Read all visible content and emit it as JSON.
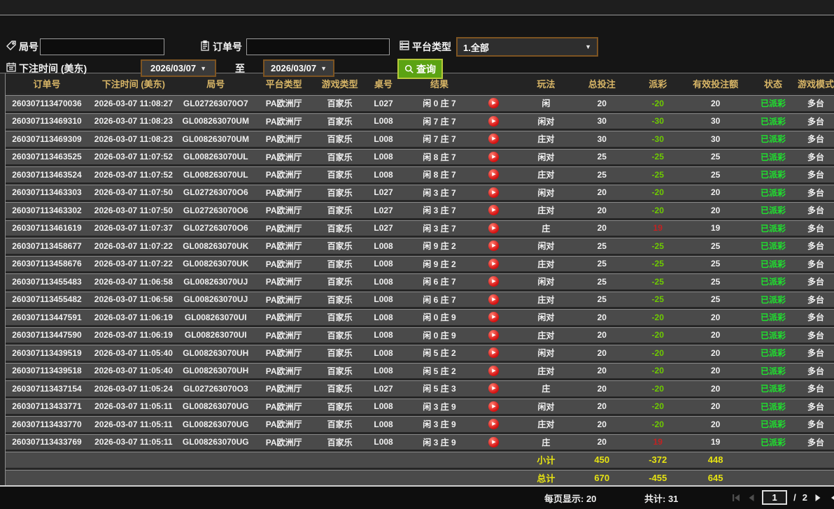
{
  "filters": {
    "game_no_label": "局号",
    "game_no_value": "",
    "order_no_label": "订单号",
    "order_no_value": "",
    "platform_label": "平台类型",
    "platform_value": "1.全部",
    "bet_time_label": "下注时间 (美东)",
    "date_from": "2026/03/07",
    "to_label": "至",
    "date_to": "2026/03/07",
    "search_label": "查询"
  },
  "table": {
    "columns": [
      {
        "key": "order_no",
        "label": "订单号"
      },
      {
        "key": "bet_time",
        "label": "下注时间 (美东)"
      },
      {
        "key": "game_no",
        "label": "局号"
      },
      {
        "key": "platform",
        "label": "平台类型"
      },
      {
        "key": "game_type",
        "label": "游戏类型"
      },
      {
        "key": "table_no",
        "label": "桌号"
      },
      {
        "key": "result",
        "label": "结果"
      },
      {
        "key": "bet_type",
        "label": "玩法"
      },
      {
        "key": "total_bet",
        "label": "总投注"
      },
      {
        "key": "payout",
        "label": "派彩"
      },
      {
        "key": "valid_bet",
        "label": "有效投注额"
      },
      {
        "key": "status",
        "label": "状态"
      },
      {
        "key": "game_mode",
        "label": "游戏模式"
      }
    ],
    "rows": [
      {
        "order_no": "260307113470036",
        "bet_time": "2026-03-07 11:08:27",
        "game_no": "GL027263070O7",
        "platform": "PA欧洲厅",
        "game_type": "百家乐",
        "table_no": "L027",
        "result": "闲 0 庄 7",
        "bet_type": "闲",
        "total_bet": "20",
        "payout": "-20",
        "valid_bet": "20",
        "status": "已派彩",
        "game_mode": "多台"
      },
      {
        "order_no": "260307113469310",
        "bet_time": "2026-03-07 11:08:23",
        "game_no": "GL008263070UM",
        "platform": "PA欧洲厅",
        "game_type": "百家乐",
        "table_no": "L008",
        "result": "闲 7 庄 7",
        "bet_type": "闲对",
        "total_bet": "30",
        "payout": "-30",
        "valid_bet": "30",
        "status": "已派彩",
        "game_mode": "多台"
      },
      {
        "order_no": "260307113469309",
        "bet_time": "2026-03-07 11:08:23",
        "game_no": "GL008263070UM",
        "platform": "PA欧洲厅",
        "game_type": "百家乐",
        "table_no": "L008",
        "result": "闲 7 庄 7",
        "bet_type": "庄对",
        "total_bet": "30",
        "payout": "-30",
        "valid_bet": "30",
        "status": "已派彩",
        "game_mode": "多台"
      },
      {
        "order_no": "260307113463525",
        "bet_time": "2026-03-07 11:07:52",
        "game_no": "GL008263070UL",
        "platform": "PA欧洲厅",
        "game_type": "百家乐",
        "table_no": "L008",
        "result": "闲 8 庄 7",
        "bet_type": "闲对",
        "total_bet": "25",
        "payout": "-25",
        "valid_bet": "25",
        "status": "已派彩",
        "game_mode": "多台"
      },
      {
        "order_no": "260307113463524",
        "bet_time": "2026-03-07 11:07:52",
        "game_no": "GL008263070UL",
        "platform": "PA欧洲厅",
        "game_type": "百家乐",
        "table_no": "L008",
        "result": "闲 8 庄 7",
        "bet_type": "庄对",
        "total_bet": "25",
        "payout": "-25",
        "valid_bet": "25",
        "status": "已派彩",
        "game_mode": "多台"
      },
      {
        "order_no": "260307113463303",
        "bet_time": "2026-03-07 11:07:50",
        "game_no": "GL027263070O6",
        "platform": "PA欧洲厅",
        "game_type": "百家乐",
        "table_no": "L027",
        "result": "闲 3 庄 7",
        "bet_type": "闲对",
        "total_bet": "20",
        "payout": "-20",
        "valid_bet": "20",
        "status": "已派彩",
        "game_mode": "多台"
      },
      {
        "order_no": "260307113463302",
        "bet_time": "2026-03-07 11:07:50",
        "game_no": "GL027263070O6",
        "platform": "PA欧洲厅",
        "game_type": "百家乐",
        "table_no": "L027",
        "result": "闲 3 庄 7",
        "bet_type": "庄对",
        "total_bet": "20",
        "payout": "-20",
        "valid_bet": "20",
        "status": "已派彩",
        "game_mode": "多台"
      },
      {
        "order_no": "260307113461619",
        "bet_time": "2026-03-07 11:07:37",
        "game_no": "GL027263070O6",
        "platform": "PA欧洲厅",
        "game_type": "百家乐",
        "table_no": "L027",
        "result": "闲 3 庄 7",
        "bet_type": "庄",
        "total_bet": "20",
        "payout": "19",
        "valid_bet": "19",
        "status": "已派彩",
        "game_mode": "多台"
      },
      {
        "order_no": "260307113458677",
        "bet_time": "2026-03-07 11:07:22",
        "game_no": "GL008263070UK",
        "platform": "PA欧洲厅",
        "game_type": "百家乐",
        "table_no": "L008",
        "result": "闲 9 庄 2",
        "bet_type": "闲对",
        "total_bet": "25",
        "payout": "-25",
        "valid_bet": "25",
        "status": "已派彩",
        "game_mode": "多台"
      },
      {
        "order_no": "260307113458676",
        "bet_time": "2026-03-07 11:07:22",
        "game_no": "GL008263070UK",
        "platform": "PA欧洲厅",
        "game_type": "百家乐",
        "table_no": "L008",
        "result": "闲 9 庄 2",
        "bet_type": "庄对",
        "total_bet": "25",
        "payout": "-25",
        "valid_bet": "25",
        "status": "已派彩",
        "game_mode": "多台"
      },
      {
        "order_no": "260307113455483",
        "bet_time": "2026-03-07 11:06:58",
        "game_no": "GL008263070UJ",
        "platform": "PA欧洲厅",
        "game_type": "百家乐",
        "table_no": "L008",
        "result": "闲 6 庄 7",
        "bet_type": "闲对",
        "total_bet": "25",
        "payout": "-25",
        "valid_bet": "25",
        "status": "已派彩",
        "game_mode": "多台"
      },
      {
        "order_no": "260307113455482",
        "bet_time": "2026-03-07 11:06:58",
        "game_no": "GL008263070UJ",
        "platform": "PA欧洲厅",
        "game_type": "百家乐",
        "table_no": "L008",
        "result": "闲 6 庄 7",
        "bet_type": "庄对",
        "total_bet": "25",
        "payout": "-25",
        "valid_bet": "25",
        "status": "已派彩",
        "game_mode": "多台"
      },
      {
        "order_no": "260307113447591",
        "bet_time": "2026-03-07 11:06:19",
        "game_no": "GL008263070UI",
        "platform": "PA欧洲厅",
        "game_type": "百家乐",
        "table_no": "L008",
        "result": "闲 0 庄 9",
        "bet_type": "闲对",
        "total_bet": "20",
        "payout": "-20",
        "valid_bet": "20",
        "status": "已派彩",
        "game_mode": "多台"
      },
      {
        "order_no": "260307113447590",
        "bet_time": "2026-03-07 11:06:19",
        "game_no": "GL008263070UI",
        "platform": "PA欧洲厅",
        "game_type": "百家乐",
        "table_no": "L008",
        "result": "闲 0 庄 9",
        "bet_type": "庄对",
        "total_bet": "20",
        "payout": "-20",
        "valid_bet": "20",
        "status": "已派彩",
        "game_mode": "多台"
      },
      {
        "order_no": "260307113439519",
        "bet_time": "2026-03-07 11:05:40",
        "game_no": "GL008263070UH",
        "platform": "PA欧洲厅",
        "game_type": "百家乐",
        "table_no": "L008",
        "result": "闲 5 庄 2",
        "bet_type": "闲对",
        "total_bet": "20",
        "payout": "-20",
        "valid_bet": "20",
        "status": "已派彩",
        "game_mode": "多台"
      },
      {
        "order_no": "260307113439518",
        "bet_time": "2026-03-07 11:05:40",
        "game_no": "GL008263070UH",
        "platform": "PA欧洲厅",
        "game_type": "百家乐",
        "table_no": "L008",
        "result": "闲 5 庄 2",
        "bet_type": "庄对",
        "total_bet": "20",
        "payout": "-20",
        "valid_bet": "20",
        "status": "已派彩",
        "game_mode": "多台"
      },
      {
        "order_no": "260307113437154",
        "bet_time": "2026-03-07 11:05:24",
        "game_no": "GL027263070O3",
        "platform": "PA欧洲厅",
        "game_type": "百家乐",
        "table_no": "L027",
        "result": "闲 5 庄 3",
        "bet_type": "庄",
        "total_bet": "20",
        "payout": "-20",
        "valid_bet": "20",
        "status": "已派彩",
        "game_mode": "多台"
      },
      {
        "order_no": "260307113433771",
        "bet_time": "2026-03-07 11:05:11",
        "game_no": "GL008263070UG",
        "platform": "PA欧洲厅",
        "game_type": "百家乐",
        "table_no": "L008",
        "result": "闲 3 庄 9",
        "bet_type": "闲对",
        "total_bet": "20",
        "payout": "-20",
        "valid_bet": "20",
        "status": "已派彩",
        "game_mode": "多台"
      },
      {
        "order_no": "260307113433770",
        "bet_time": "2026-03-07 11:05:11",
        "game_no": "GL008263070UG",
        "platform": "PA欧洲厅",
        "game_type": "百家乐",
        "table_no": "L008",
        "result": "闲 3 庄 9",
        "bet_type": "庄对",
        "total_bet": "20",
        "payout": "-20",
        "valid_bet": "20",
        "status": "已派彩",
        "game_mode": "多台"
      },
      {
        "order_no": "260307113433769",
        "bet_time": "2026-03-07 11:05:11",
        "game_no": "GL008263070UG",
        "platform": "PA欧洲厅",
        "game_type": "百家乐",
        "table_no": "L008",
        "result": "闲 3 庄 9",
        "bet_type": "庄",
        "total_bet": "20",
        "payout": "19",
        "valid_bet": "19",
        "status": "已派彩",
        "game_mode": "多台"
      }
    ],
    "subtotal": {
      "label": "小计",
      "total_bet": "450",
      "payout": "-372",
      "valid_bet": "448"
    },
    "grand_total": {
      "label": "总计",
      "total_bet": "670",
      "payout": "-455",
      "valid_bet": "645"
    }
  },
  "pager": {
    "per_page_text": "每页显示: 20",
    "total_count_text": "共计: 31",
    "page": "1",
    "page_sep": "/",
    "total_pages": "2"
  },
  "colors": {
    "search_button_green": "#5ba313",
    "dropdown_border_orange": "#7d5422",
    "header_gold": "#d7b566",
    "payout_negative_green": "#6ecb00",
    "payout_positive_red": "#c32222",
    "status_green": "#1ee32e",
    "totals_yellow": "#e6e312"
  }
}
